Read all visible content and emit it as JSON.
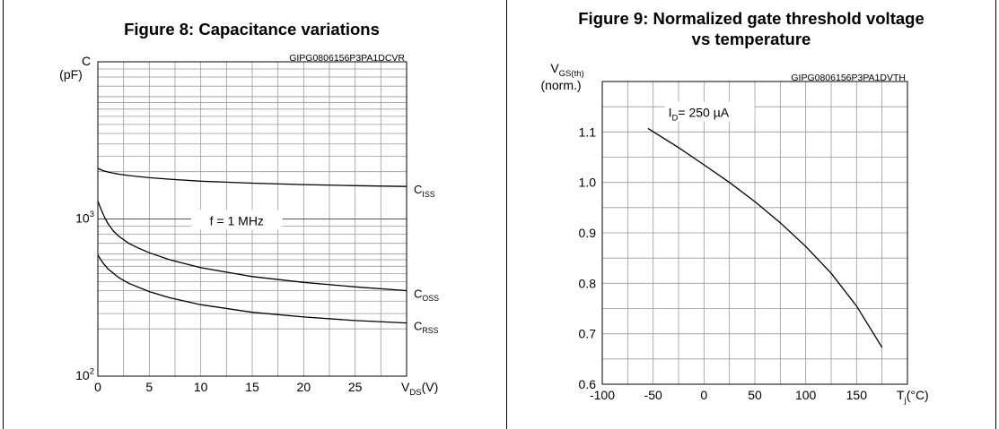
{
  "chart_data": [
    {
      "type": "line",
      "title": "Figure 8: Capacitance variations",
      "code": "GIPG0806156P3PA1DCVR",
      "ylabel": "C",
      "ylabel_unit": "(pF)",
      "xlabel_main": "V",
      "xlabel_sub": "DS",
      "xlabel_unit": "(V)",
      "y_scale": "log",
      "ylim": [
        100,
        10000
      ],
      "xlim": [
        0,
        30
      ],
      "grid": true,
      "x_ticks": [
        0,
        5,
        10,
        15,
        20,
        25
      ],
      "x_tick_labels": [
        "0",
        "5",
        "10",
        "15",
        "20",
        "25"
      ],
      "y_ticks": [
        {
          "base": "10",
          "exp": "3",
          "value": 1000
        },
        {
          "base": "10",
          "exp": "2",
          "value": 100
        }
      ],
      "annotation": "f = 1 MHz",
      "annotation_pos": [
        13.5,
        950
      ],
      "series": [
        {
          "name_main": "C",
          "name_sub": "ISS",
          "x": [
            0,
            0.5,
            1,
            2,
            3,
            5,
            7,
            10,
            15,
            20,
            25,
            30
          ],
          "y": [
            2100,
            2030,
            1990,
            1930,
            1890,
            1830,
            1790,
            1740,
            1690,
            1655,
            1630,
            1610
          ]
        },
        {
          "name_main": "C",
          "name_sub": "OSS",
          "x": [
            0,
            0.3,
            0.7,
            1,
            1.5,
            2,
            3,
            4,
            5,
            7,
            10,
            15,
            20,
            25,
            30
          ],
          "y": [
            1300,
            1160,
            1010,
            930,
            840,
            780,
            700,
            650,
            610,
            550,
            490,
            430,
            395,
            370,
            350
          ]
        },
        {
          "name_main": "C",
          "name_sub": "RSS",
          "x": [
            0,
            0.5,
            1,
            2,
            3,
            5,
            7,
            10,
            15,
            20,
            25,
            30
          ],
          "y": [
            590,
            525,
            480,
            425,
            390,
            345,
            315,
            285,
            255,
            238,
            226,
            218
          ]
        }
      ]
    },
    {
      "type": "line",
      "title": "Figure 9: Normalized gate threshold voltage vs temperature",
      "title_lines": [
        "Figure 9: Normalized gate threshold voltage",
        "vs temperature"
      ],
      "code": "GIPG0806156P3PA1DVTH",
      "ylabel_main": "V",
      "ylabel_sub": "GS(th)",
      "ylabel_unit": "(norm.)",
      "xlabel_main": "T",
      "xlabel_sub": "j",
      "xlabel_unit": "(°C)",
      "xlim": [
        -100,
        200
      ],
      "ylim": [
        0.6,
        1.2
      ],
      "grid": true,
      "x_ticks": [
        -100,
        -50,
        0,
        50,
        100,
        150
      ],
      "x_tick_labels": [
        "-100",
        "-50",
        "0",
        "50",
        "100",
        "150"
      ],
      "y_ticks": [
        0.6,
        0.7,
        0.8,
        0.9,
        1.0,
        1.1
      ],
      "y_tick_labels": [
        "0.6",
        "0.7",
        "0.8",
        "0.9",
        "1.0",
        "1.1"
      ],
      "annotation_main": "I",
      "annotation_sub": "D",
      "annotation_rest": "= 250 µA",
      "annotation_pos": [
        -35,
        1.135
      ],
      "series": [
        {
          "x": [
            -55,
            -25,
            0,
            25,
            50,
            75,
            100,
            125,
            150,
            175
          ],
          "y": [
            1.107,
            1.069,
            1.035,
            1.0,
            0.962,
            0.92,
            0.873,
            0.82,
            0.755,
            0.673
          ]
        }
      ]
    }
  ]
}
